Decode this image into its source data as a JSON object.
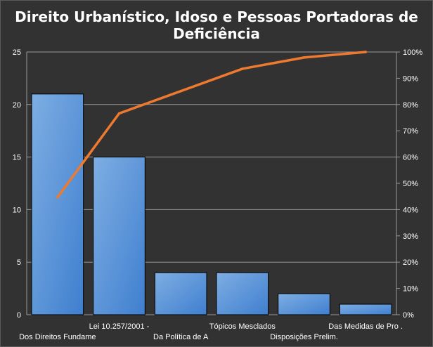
{
  "chart_data": {
    "type": "bar",
    "title_lines": [
      "Direito Urbanístico, Idoso e Pessoas Portadoras de",
      "Deficiência"
    ],
    "categories": [
      "Dos Direitos Fundame",
      "Lei 10.257/2001 -",
      "Da Política de A",
      "Tópicos Mesclados",
      "Disposições Prelim.",
      "Das Medidas de Pro ."
    ],
    "series": [
      {
        "type": "bar",
        "axis": "left",
        "values": [
          21,
          15,
          4,
          4,
          2,
          1
        ]
      },
      {
        "type": "line",
        "axis": "right",
        "values": [
          44.7,
          76.6,
          85.1,
          93.6,
          97.9,
          100
        ]
      }
    ],
    "ylim": [
      0,
      25
    ],
    "yticks": [
      "0",
      "5",
      "10",
      "15",
      "20",
      "25"
    ],
    "y2lim": [
      0,
      100
    ],
    "y2ticks": [
      "0%",
      "10%",
      "20%",
      "30%",
      "40%",
      "50%",
      "60%",
      "70%",
      "80%",
      "90%",
      "100%"
    ],
    "grid": true,
    "legend": "none"
  },
  "colors": {
    "background": "#323232",
    "bar_fill_top": "#7eaee3",
    "bar_fill_bottom": "#3f7fcf",
    "bar_stroke": "#000000",
    "line": "#ee7a30",
    "grid": "#9a9a9a",
    "text": "#ffffff"
  }
}
